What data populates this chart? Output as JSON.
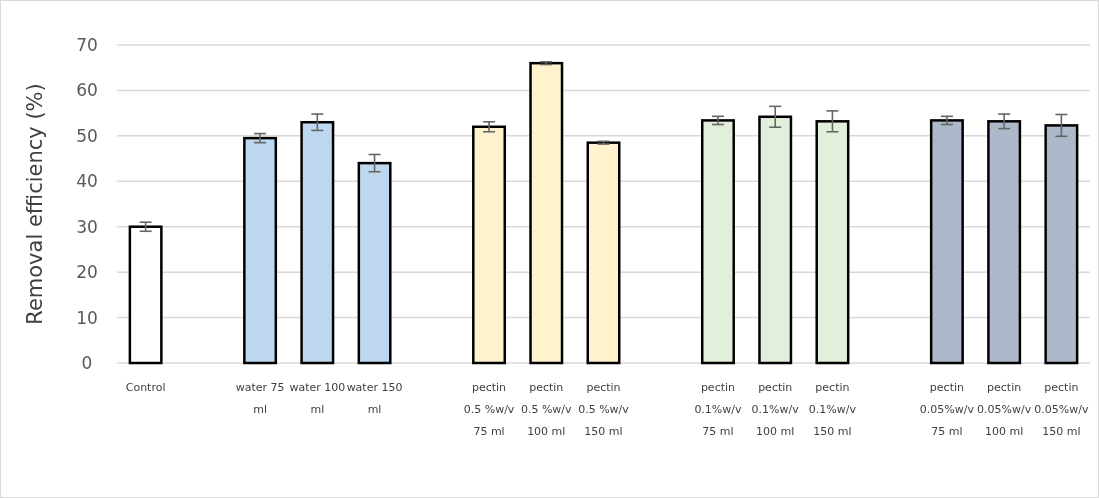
{
  "chart_data": {
    "type": "bar",
    "ylabel": "Removal efficiency (%)",
    "categories": [
      "Control",
      null,
      "water 75\nml",
      "water 100\nml",
      "water 150\nml",
      null,
      "pectin\n0.5 %w/v\n75 ml",
      "pectin\n0.5 %w/v\n100 ml",
      "pectin\n0.5 %w/v\n150 ml",
      null,
      "pectin\n0.1%w/v\n75 ml",
      "pectin\n0.1%w/v\n100 ml",
      "pectin\n0.1%w/v\n150 ml",
      null,
      "pectin\n0.05%w/v\n75 ml",
      "pectin\n0.05%w/v\n100 ml",
      "pectin\n0.05%w/v\n150 ml"
    ],
    "values": [
      30,
      null,
      49.5,
      53,
      44,
      null,
      52,
      66,
      48.5,
      null,
      53.4,
      54.2,
      53.2,
      null,
      53.4,
      53.2,
      52.3
    ],
    "errors": [
      1,
      null,
      1,
      1.8,
      1.9,
      null,
      1.1,
      0.3,
      0.3,
      null,
      0.9,
      2.3,
      2.3,
      null,
      0.9,
      1.6,
      2.4
    ],
    "colors": [
      "#ffffff",
      null,
      "#bdd7ee",
      "#bdd7ee",
      "#bdd7ee",
      null,
      "#fff2cc",
      "#fff2cc",
      "#fff2cc",
      null,
      "#e2efda",
      "#e2efda",
      "#e2efda",
      null,
      "#adb9ca",
      "#adb9ca",
      "#adb9ca"
    ],
    "ylim": [
      0,
      70
    ],
    "yticks": [
      0,
      10,
      20,
      30,
      40,
      50,
      60,
      70
    ],
    "grid": "y"
  }
}
